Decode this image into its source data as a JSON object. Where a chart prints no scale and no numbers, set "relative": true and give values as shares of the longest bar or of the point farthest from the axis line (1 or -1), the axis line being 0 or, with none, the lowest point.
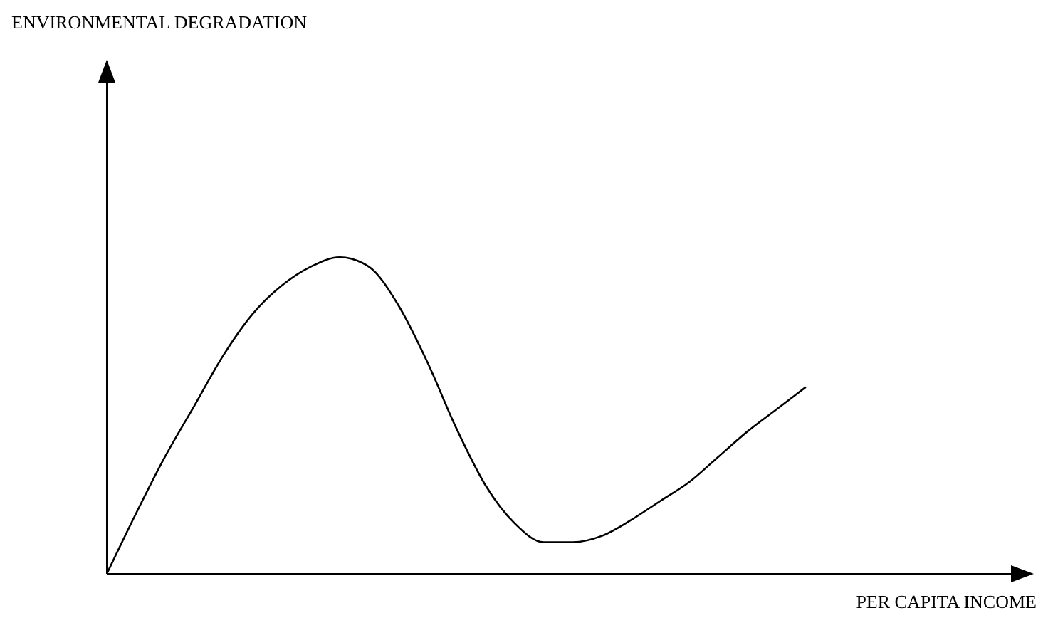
{
  "chart_data": {
    "type": "line",
    "relative": true,
    "xlabel": "PER CAPITA INCOME",
    "annotations": [
      "ENVIRONMENTAL DEGRADATION"
    ],
    "categories": [
      null,
      null,
      null,
      null,
      null,
      null,
      null,
      null,
      null,
      null,
      null,
      null,
      null,
      null,
      null,
      null,
      null,
      null,
      null,
      null,
      null,
      null,
      null,
      null,
      null
    ],
    "grid": false,
    "legend": false,
    "marker": "none",
    "line_style": "solid",
    "series": [
      {
        "color": "#000000",
        "values": [
          0,
          0.19,
          0.37,
          0.53,
          0.69,
          0.82,
          0.91,
          0.97,
          1,
          0.97,
          0.85,
          0.67,
          0.46,
          0.28,
          0.16,
          0.1,
          0.1,
          0.12,
          0.17,
          0.23,
          0.29,
          0.37,
          0.45,
          0.52,
          0.59
        ]
      }
    ]
  }
}
